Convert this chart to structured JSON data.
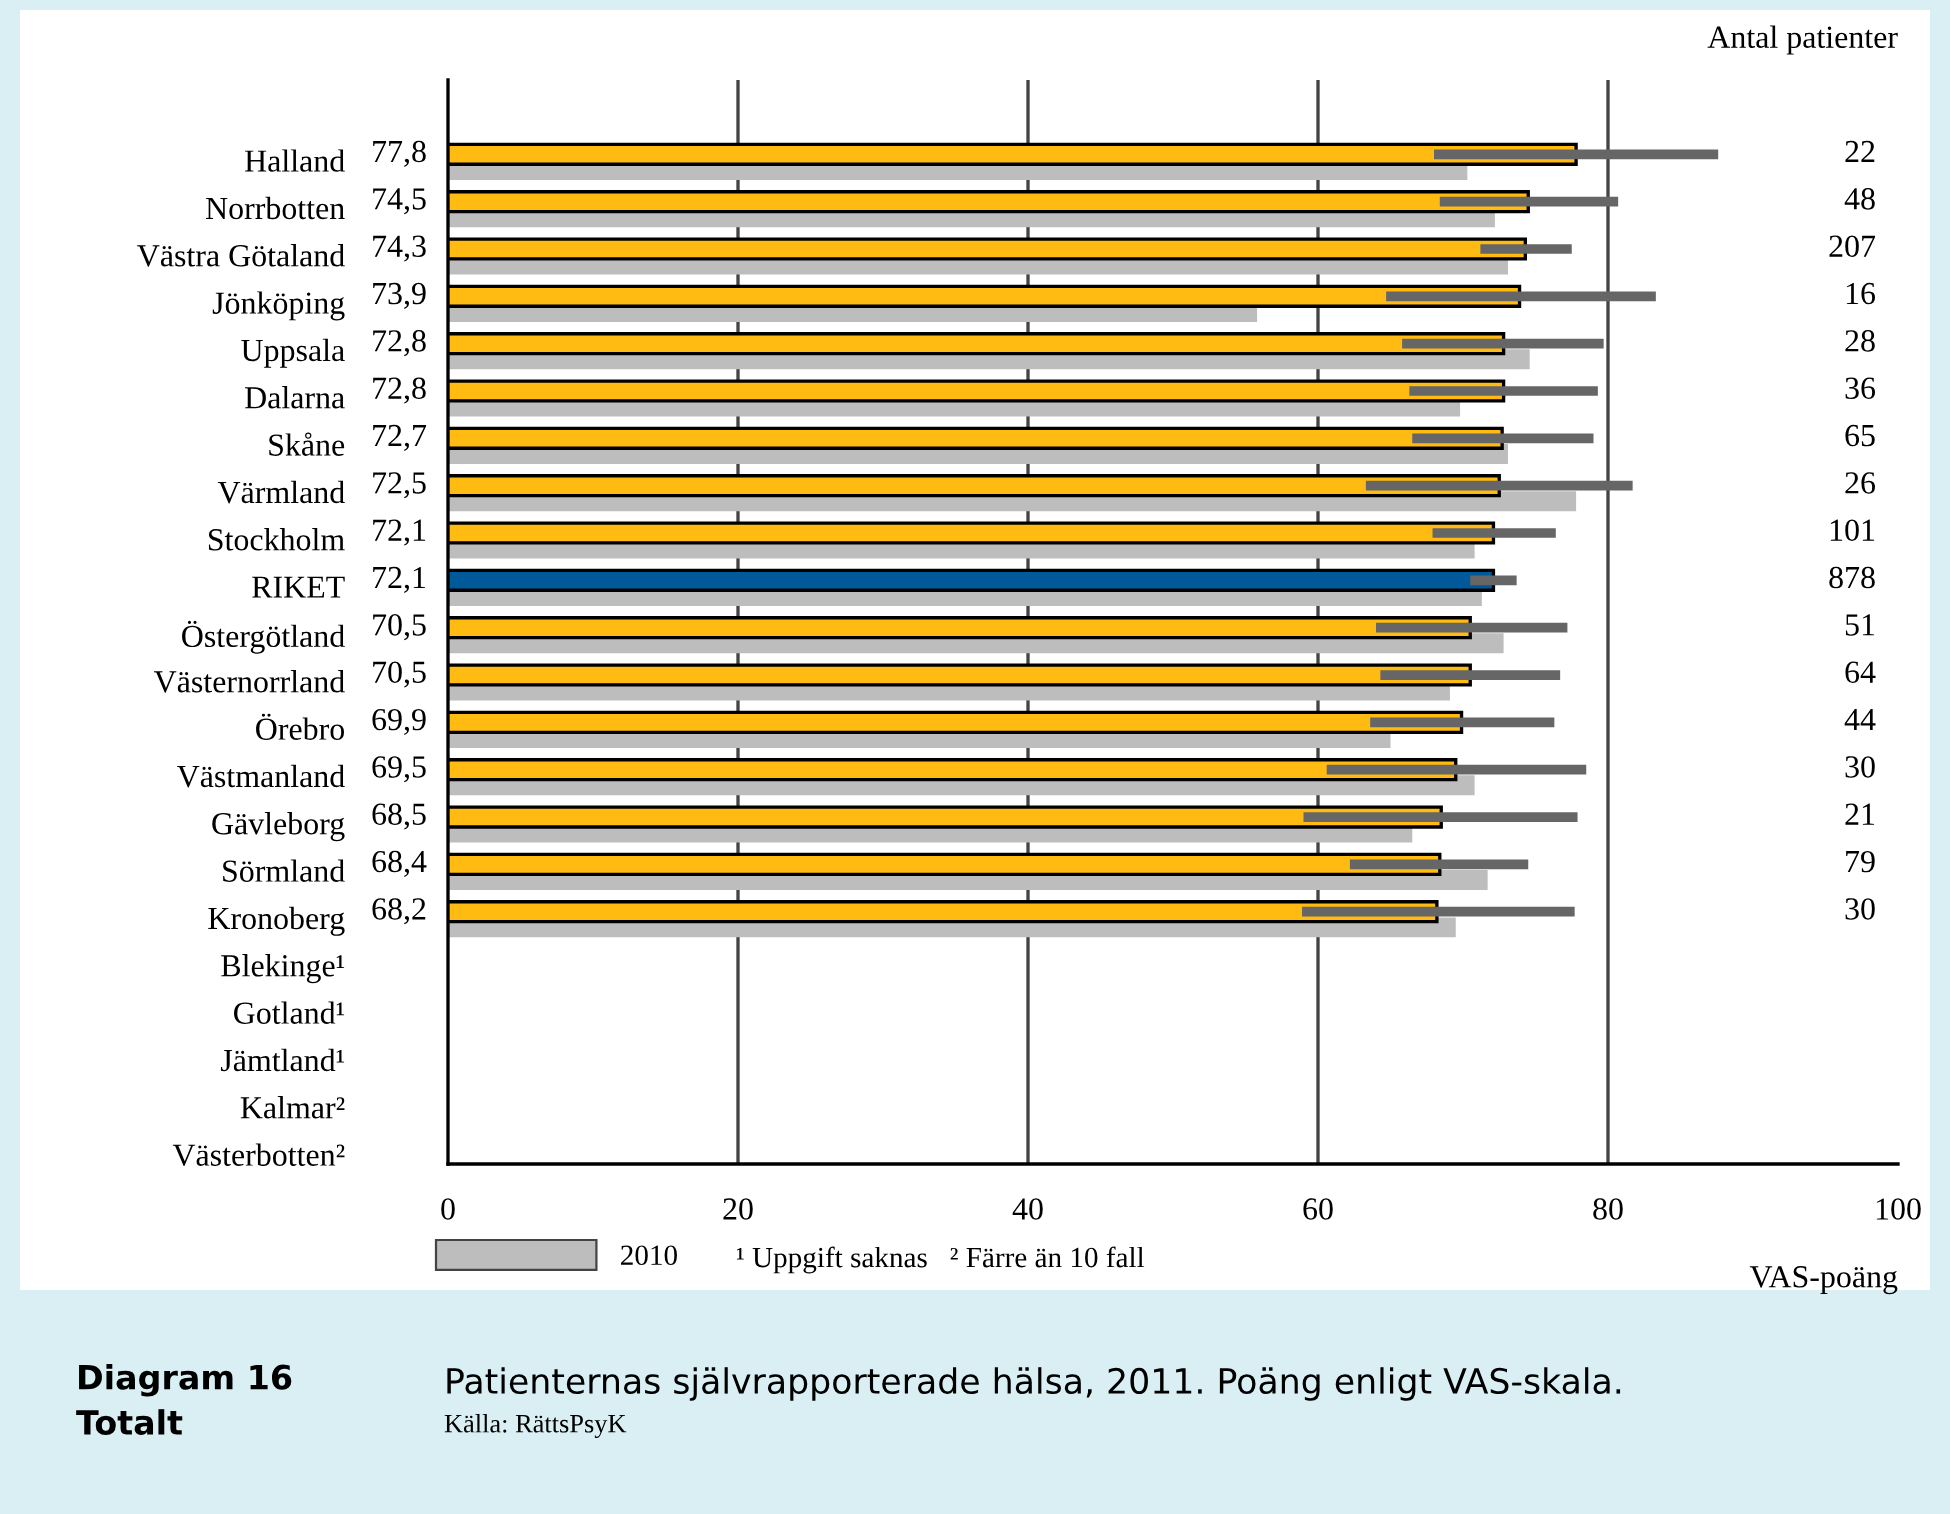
{
  "chart_data": {
    "type": "bar",
    "orientation": "horizontal",
    "title": "Patienternas självrapporterade hälsa, 2011. Poäng enligt VAS-skala.",
    "subtitle": "Diagram 16\nTotalt",
    "xlabel": "VAS-poäng",
    "categories": [
      "Halland",
      "Norrbotten",
      "Västra Götaland",
      "Jönköping",
      "Uppsala",
      "Dalarna",
      "Skåne",
      "Värmland",
      "Stockholm",
      "RIKET",
      "Östergötland",
      "Västernorrland",
      "Örebro",
      "Västmanland",
      "Gävleborg",
      "Sörmland",
      "Kronoberg",
      "Blekinge¹",
      "Gotland¹",
      "Jämtland¹",
      "Kalmar²",
      "Västerbotten²"
    ],
    "series": [
      {
        "colors": [
          "#ffbb11",
          "#ffbb11",
          "#ffbb11",
          "#ffbb11",
          "#ffbb11",
          "#ffbb11",
          "#ffbb11",
          "#ffbb11",
          "#ffbb11",
          "#005a9a",
          "#ffbb11",
          "#ffbb11",
          "#ffbb11",
          "#ffbb11",
          "#ffbb11",
          "#ffbb11",
          "#ffbb11",
          null,
          null,
          null,
          null,
          null
        ],
        "values": [
          77.8,
          74.5,
          74.3,
          73.9,
          72.8,
          72.8,
          72.7,
          72.5,
          72.1,
          72.1,
          70.5,
          70.5,
          69.9,
          69.5,
          68.5,
          68.4,
          68.2,
          null,
          null,
          null,
          null,
          null
        ],
        "value_labels": [
          "77,8",
          "74,5",
          "74,3",
          "73,9",
          "72,8",
          "72,8",
          "72,7",
          "72,5",
          "72,1",
          "72,1",
          "70,5",
          "70,5",
          "69,9",
          "69,5",
          "68,5",
          "68,4",
          "68,2",
          null,
          null,
          null,
          null,
          null
        ],
        "errors": [
          [
            68.0,
            87.6
          ],
          [
            68.4,
            80.7
          ],
          [
            71.2,
            77.5
          ],
          [
            64.7,
            83.3
          ],
          [
            65.8,
            79.7
          ],
          [
            66.3,
            79.3
          ],
          [
            66.5,
            79.0
          ],
          [
            63.3,
            81.7
          ],
          [
            67.9,
            76.4
          ],
          [
            70.5,
            73.7
          ],
          [
            64.0,
            77.2
          ],
          [
            64.3,
            76.7
          ],
          [
            63.6,
            76.3
          ],
          [
            60.6,
            78.5
          ],
          [
            59.0,
            77.9
          ],
          [
            62.2,
            74.5
          ],
          [
            58.9,
            77.7
          ],
          null,
          null,
          null,
          null,
          null
        ]
      },
      {
        "name": "2010",
        "color": "#bdbdbd",
        "values": [
          70.3,
          72.2,
          73.1,
          55.8,
          74.6,
          69.8,
          73.1,
          77.8,
          70.8,
          71.3,
          72.8,
          69.1,
          65.0,
          70.8,
          66.5,
          71.7,
          69.5,
          null,
          null,
          null,
          null,
          null
        ]
      }
    ],
    "xlim": [
      0,
      100
    ],
    "xticks": [
      0,
      20,
      40,
      60,
      80,
      100
    ],
    "grid": "x",
    "legend": "bottom left",
    "annotations": [
      "Antal patienter",
      "22",
      "48",
      "207",
      "16",
      "28",
      "36",
      "65",
      "26",
      "101",
      "878",
      "51",
      "64",
      "44",
      "30",
      "21",
      "79",
      "30",
      "¹ Uppgift saknas   ² Färre än 10 fall",
      "Källa: RättsPsyK"
    ]
  }
}
